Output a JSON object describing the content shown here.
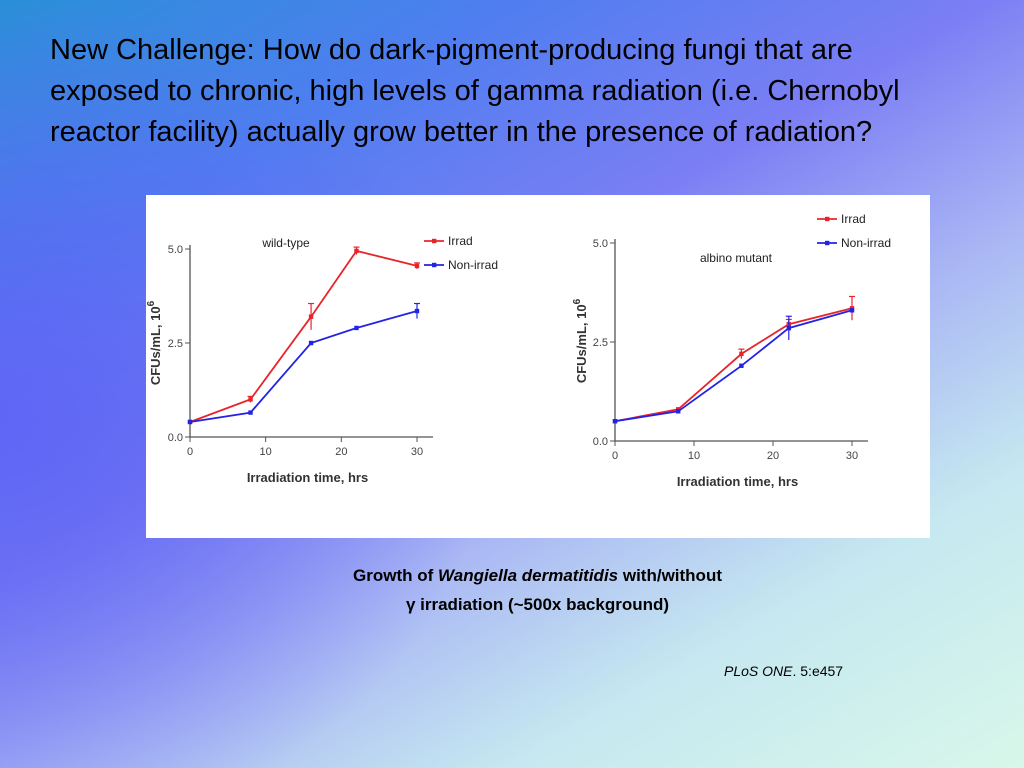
{
  "slide": {
    "title": "New Challenge: How do dark-pigment-producing fungi that are exposed to chronic, high levels of gamma radiation (i.e. Chernobyl reactor facility) actually grow better in the presence of radiation?",
    "caption": {
      "prefix": "Growth of ",
      "species": "Wangiella dermatitidis",
      "suffix": " with/without",
      "line2": "γ irradiation (~500x background)"
    },
    "citation": {
      "journal": "PLoS ONE",
      "ref": ". 5:e457"
    }
  },
  "colors": {
    "irrad": "#e8242b",
    "non_irrad": "#2323e6",
    "axis": "#555555"
  },
  "chart_data": [
    {
      "type": "line",
      "title": "wild-type",
      "xlabel": "Irradiation time, hrs",
      "ylabel": "CFUs/mL, 10",
      "ylabel_sup": "6",
      "xlim": [
        0,
        30
      ],
      "ylim": [
        0,
        5
      ],
      "xticks": [
        "0",
        "10",
        "20",
        "30"
      ],
      "yticks": [
        "0.0",
        "2.5",
        "5.0"
      ],
      "legend_position": "top-right",
      "grid": false,
      "series": [
        {
          "name": "Irrad",
          "color_key": "irrad",
          "x": [
            0,
            8,
            16,
            22,
            30
          ],
          "y": [
            0.4,
            1.0,
            3.2,
            4.95,
            4.55
          ],
          "err": [
            0,
            0.08,
            0.35,
            0.1,
            0.08
          ]
        },
        {
          "name": "Non-irrad",
          "color_key": "non_irrad",
          "x": [
            0,
            8,
            16,
            22,
            30
          ],
          "y": [
            0.4,
            0.65,
            2.5,
            2.9,
            3.35
          ],
          "err": [
            0,
            0,
            0,
            0,
            0.2
          ]
        }
      ]
    },
    {
      "type": "line",
      "title": "albino mutant",
      "xlabel": "Irradiation time, hrs",
      "ylabel": "CFUs/mL, 10",
      "ylabel_sup": "6",
      "xlim": [
        0,
        30
      ],
      "ylim": [
        0,
        5
      ],
      "xticks": [
        "0",
        "10",
        "20",
        "30"
      ],
      "yticks": [
        "0.0",
        "2.5",
        "5.0"
      ],
      "legend_position": "top-right",
      "grid": false,
      "series": [
        {
          "name": "Irrad",
          "color_key": "irrad",
          "x": [
            0,
            8,
            16,
            22,
            30
          ],
          "y": [
            0.5,
            0.8,
            2.2,
            2.95,
            3.35
          ],
          "err": [
            0,
            0,
            0.12,
            0.12,
            0.3
          ]
        },
        {
          "name": "Non-irrad",
          "color_key": "non_irrad",
          "x": [
            0,
            8,
            16,
            22,
            30
          ],
          "y": [
            0.5,
            0.75,
            1.9,
            2.85,
            3.3
          ],
          "err": [
            0,
            0,
            0,
            0.3,
            0
          ]
        }
      ]
    }
  ]
}
